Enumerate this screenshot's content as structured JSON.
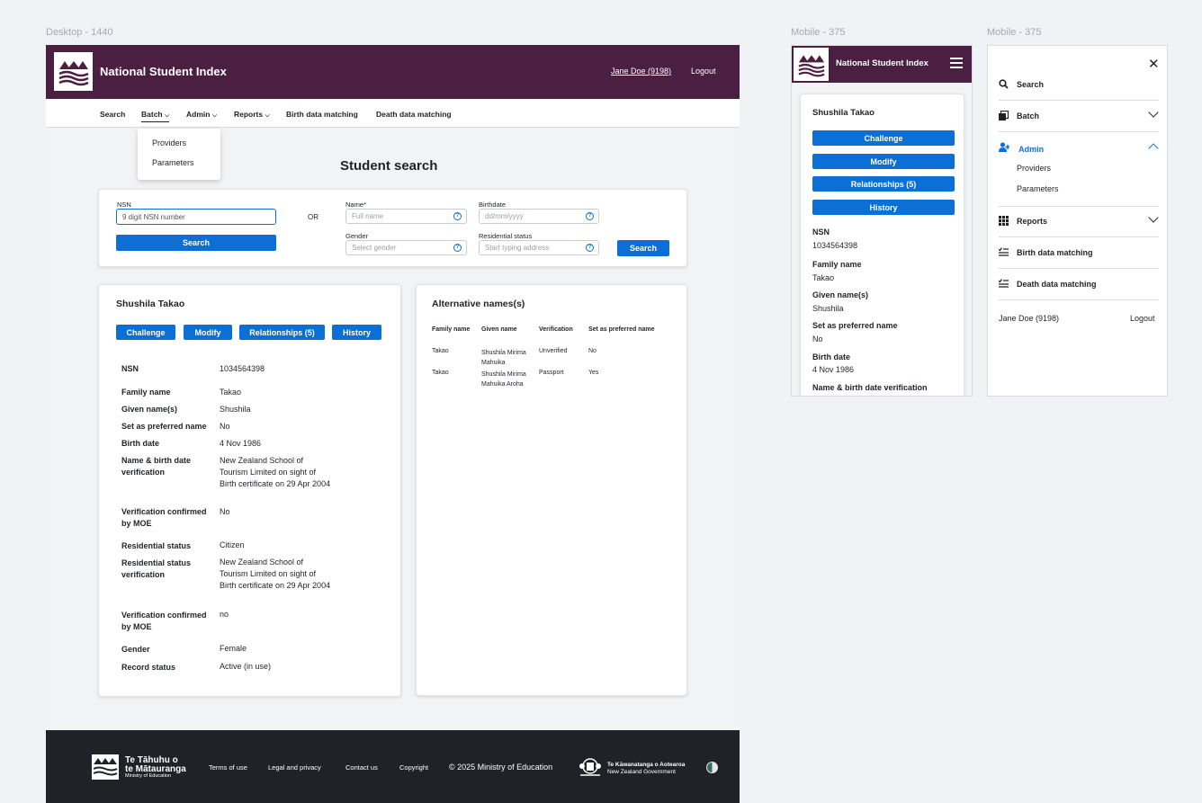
{
  "labels": {
    "desktop": "Desktop - 1440",
    "mobile1": "Mobile - 375",
    "mobile2": "Mobile - 375"
  },
  "header": {
    "app_title": "National Student Index",
    "user": "Jane Doe (9198)",
    "logout": "Logout"
  },
  "nav": {
    "search": "Search",
    "batch": "Batch",
    "admin": "Admin",
    "reports": "Reports",
    "birth": "Birth data matching",
    "death": "Death data matching"
  },
  "dropdown": {
    "providers": "Providers",
    "parameters": "Parameters"
  },
  "page_title": "Student search",
  "search_form": {
    "nsn_label": "NSN",
    "nsn_value": "9 digit NSN number",
    "or": "OR",
    "name_label": "Name*",
    "name_placeholder": "Full name",
    "birthdate_label": "Birthdate",
    "birthdate_placeholder": "dd/mm/yyyy",
    "gender_label": "Gender",
    "gender_placeholder": "Select gender",
    "residential_label": "Residential status",
    "residential_placeholder": "Start typing address",
    "search_button": "Search",
    "search_button2": "Search"
  },
  "student": {
    "name": "Shushila Takao",
    "actions": {
      "challenge": "Challenge",
      "modify": "Modify",
      "relationships": "Relationships (5)",
      "history": "History"
    },
    "fields": {
      "nsn": {
        "label": "NSN",
        "value": "1034564398"
      },
      "family": {
        "label": "Family name",
        "value": "Takao"
      },
      "given": {
        "label": "Given name(s)",
        "value": "Shushila"
      },
      "preferred": {
        "label": "Set as preferred name",
        "value": "No"
      },
      "birth": {
        "label": "Birth date",
        "value": "4 Nov 1986"
      },
      "verif": {
        "label": "Name & birth date verification",
        "value": "New Zealand School of Tourism Limited on sight of Birth certificate on 29 Apr 2004"
      },
      "confirmed": {
        "label": "Verification confirmed by MOE",
        "value": "No"
      },
      "residential": {
        "label": "Residential status",
        "value": "Citizen"
      },
      "res_verif": {
        "label": "Residential status verification",
        "value": "New Zealand School of Tourism Limited on sight of Birth certificate on 29 Apr 2004"
      },
      "confirmed2": {
        "label": "Verification confirmed by MOE",
        "value": "no"
      },
      "gender": {
        "label": "Gender",
        "value": "Female"
      },
      "record": {
        "label": "Record status",
        "value": "Active (in use)"
      }
    }
  },
  "alt_names": {
    "title": "Alternative names(s)",
    "headers": {
      "family": "Family name",
      "given": "Given name",
      "verification": "Verification",
      "preferred": "Set as preferred name"
    },
    "rows": [
      {
        "family": "Takao",
        "given": "Shushila Mirima Mahuika",
        "verification": "Unverified",
        "preferred": "No"
      },
      {
        "family": "Takao",
        "given": "Shushila Mirima Mahuika Aroha",
        "verification": "Passport",
        "preferred": "Yes"
      }
    ]
  },
  "footer": {
    "org_line1": "Te Tāhuhu o",
    "org_line2": "te Mātauranga",
    "org_line3": "Ministry of Education",
    "terms": "Terms of use",
    "legal": "Legal and privacy",
    "contact": "Contact us",
    "copyright": "Copyright",
    "copyright_text": "© 2025 Ministry of Education",
    "gov_line1": "Te Kāwanatanga o Aotearoa",
    "gov_line2": "New Zealand Government"
  },
  "mobile": {
    "app_title": "National Student Index",
    "name": "Shushila Takao",
    "fields": {
      "nsn": {
        "label": "NSN",
        "value": "1034564398"
      },
      "family": {
        "label": "Family name",
        "value": "Takao"
      },
      "given": {
        "label": "Given name(s)",
        "value": "Shushila"
      },
      "preferred": {
        "label": "Set as preferred name",
        "value": "No"
      },
      "birth": {
        "label": "Birth date",
        "value": "4 Nov 1986"
      },
      "verif": {
        "label": "Name & birth date verification"
      }
    }
  },
  "mobile_menu": {
    "search": "Search",
    "batch": "Batch",
    "admin": "Admin",
    "providers": "Providers",
    "parameters": "Parameters",
    "reports": "Reports",
    "birth": "Birth data matching",
    "death": "Death data matching",
    "user": "Jane Doe (9198)",
    "logout": "Logout"
  },
  "colors": {
    "brand": "#4b1f41",
    "accent": "#0b6fd6",
    "footer": "#1f2328"
  }
}
